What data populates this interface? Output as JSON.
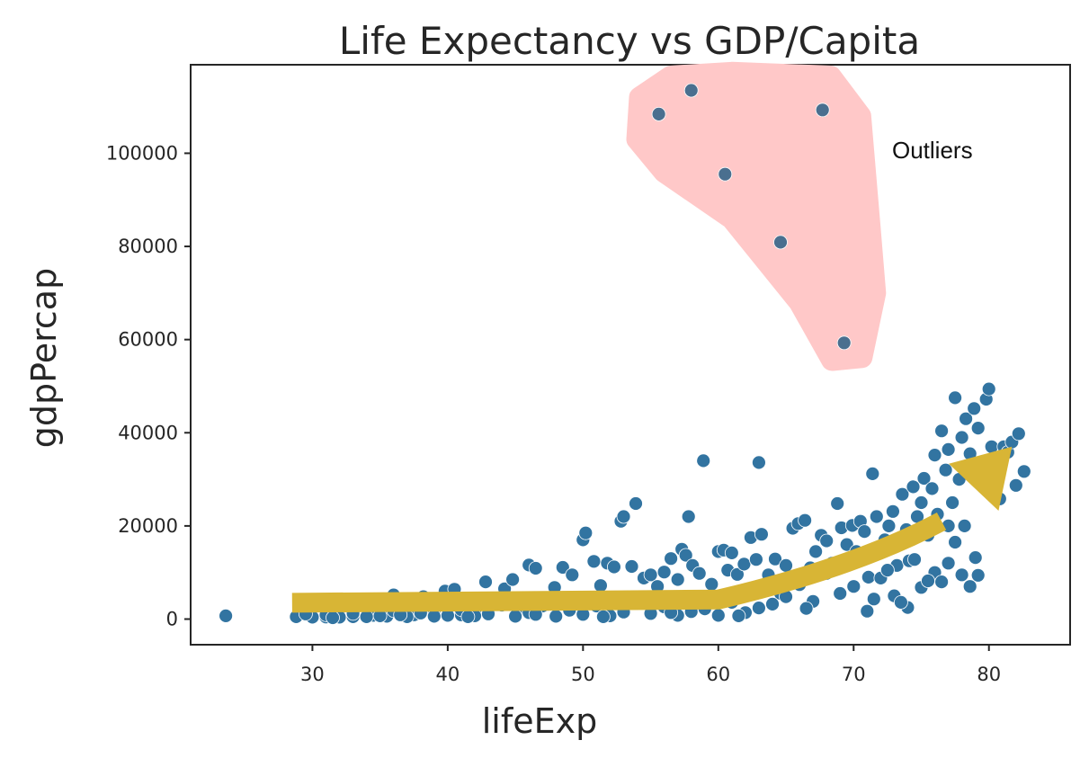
{
  "chart_data": {
    "type": "scatter",
    "title": "Life Expectancy vs GDP/Capita",
    "xlabel": "lifeExp",
    "ylabel": "gdpPercap",
    "xlim": [
      21,
      86
    ],
    "ylim": [
      -5500,
      119000
    ],
    "xticks": [
      30,
      40,
      50,
      60,
      70,
      80
    ],
    "yticks": [
      0,
      20000,
      40000,
      60000,
      80000,
      100000
    ],
    "grid": false,
    "marker_color": "#3274a1",
    "highlight_color": "#ffc8c8",
    "arrow_color": "#d8b535",
    "annotation": "Outliers",
    "outliers": [
      {
        "x": 55.6,
        "y": 108400
      },
      {
        "x": 58.0,
        "y": 113500
      },
      {
        "x": 67.7,
        "y": 109300
      },
      {
        "x": 60.5,
        "y": 95500
      },
      {
        "x": 64.6,
        "y": 80900
      },
      {
        "x": 69.3,
        "y": 59300
      }
    ],
    "points": [
      [
        23.6,
        700
      ],
      [
        28.8,
        500
      ],
      [
        30.0,
        600
      ],
      [
        31.0,
        450
      ],
      [
        32.0,
        700
      ],
      [
        33.0,
        500
      ],
      [
        34.5,
        800
      ],
      [
        35.5,
        600
      ],
      [
        36.0,
        5200
      ],
      [
        37.5,
        900
      ],
      [
        38.2,
        4800
      ],
      [
        39.0,
        1200
      ],
      [
        39.8,
        6000
      ],
      [
        40.5,
        6400
      ],
      [
        41.0,
        900
      ],
      [
        42.0,
        1500
      ],
      [
        42.8,
        8000
      ],
      [
        43.5,
        3800
      ],
      [
        44.2,
        6500
      ],
      [
        44.8,
        8500
      ],
      [
        45.5,
        2200
      ],
      [
        46.0,
        11600
      ],
      [
        46.5,
        10900
      ],
      [
        47.2,
        3000
      ],
      [
        47.9,
        6800
      ],
      [
        48.5,
        11100
      ],
      [
        49.2,
        9500
      ],
      [
        50.0,
        17000
      ],
      [
        50.2,
        18500
      ],
      [
        50.8,
        12400
      ],
      [
        51.3,
        7200
      ],
      [
        51.8,
        12000
      ],
      [
        52.3,
        11200
      ],
      [
        52.8,
        21000
      ],
      [
        53.0,
        22000
      ],
      [
        53.6,
        11300
      ],
      [
        53.9,
        24800
      ],
      [
        54.5,
        8800
      ],
      [
        55.0,
        9500
      ],
      [
        55.5,
        7000
      ],
      [
        56.0,
        10100
      ],
      [
        56.5,
        13000
      ],
      [
        57.0,
        8500
      ],
      [
        57.3,
        15000
      ],
      [
        57.6,
        13700
      ],
      [
        57.8,
        22000
      ],
      [
        58.1,
        11500
      ],
      [
        58.6,
        9800
      ],
      [
        58.9,
        34000
      ],
      [
        59.5,
        7500
      ],
      [
        60.0,
        14500
      ],
      [
        60.4,
        14800
      ],
      [
        60.7,
        10500
      ],
      [
        61.0,
        14200
      ],
      [
        61.4,
        9600
      ],
      [
        61.9,
        11800
      ],
      [
        62.4,
        17500
      ],
      [
        62.8,
        12800
      ],
      [
        63.0,
        33600
      ],
      [
        63.2,
        18200
      ],
      [
        63.7,
        9500
      ],
      [
        64.2,
        12900
      ],
      [
        64.6,
        5500
      ],
      [
        65.0,
        11500
      ],
      [
        65.5,
        19500
      ],
      [
        65.9,
        20500
      ],
      [
        66.4,
        21200
      ],
      [
        66.8,
        11000
      ],
      [
        67.2,
        14500
      ],
      [
        67.6,
        18000
      ],
      [
        68.0,
        16800
      ],
      [
        68.4,
        12000
      ],
      [
        68.8,
        24800
      ],
      [
        69.1,
        19600
      ],
      [
        69.5,
        16000
      ],
      [
        69.9,
        20100
      ],
      [
        70.2,
        14500
      ],
      [
        70.5,
        21000
      ],
      [
        70.8,
        18800
      ],
      [
        71.1,
        9000
      ],
      [
        71.4,
        31200
      ],
      [
        71.7,
        22000
      ],
      [
        72.0,
        14800
      ],
      [
        72.3,
        17000
      ],
      [
        72.6,
        20000
      ],
      [
        72.9,
        23100
      ],
      [
        73.2,
        11500
      ],
      [
        73.4,
        16000
      ],
      [
        73.6,
        26800
      ],
      [
        73.9,
        19200
      ],
      [
        74.1,
        12500
      ],
      [
        74.4,
        28400
      ],
      [
        74.7,
        22000
      ],
      [
        75.0,
        25000
      ],
      [
        75.2,
        30200
      ],
      [
        75.5,
        18000
      ],
      [
        75.8,
        28000
      ],
      [
        76.0,
        35200
      ],
      [
        76.2,
        22500
      ],
      [
        76.5,
        40400
      ],
      [
        76.8,
        32000
      ],
      [
        77.0,
        36400
      ],
      [
        77.3,
        25000
      ],
      [
        77.5,
        47500
      ],
      [
        77.8,
        30000
      ],
      [
        78.0,
        39000
      ],
      [
        78.3,
        43000
      ],
      [
        78.6,
        35500
      ],
      [
        78.9,
        45200
      ],
      [
        79.2,
        41000
      ],
      [
        79.5,
        33800
      ],
      [
        79.8,
        47200
      ],
      [
        80.0,
        49400
      ],
      [
        80.2,
        37000
      ],
      [
        80.5,
        29500
      ],
      [
        80.8,
        25800
      ],
      [
        81.1,
        37000
      ],
      [
        81.4,
        35800
      ],
      [
        81.7,
        38000
      ],
      [
        82.0,
        28700
      ],
      [
        82.2,
        39800
      ],
      [
        82.6,
        31700
      ],
      [
        76.0,
        10000
      ],
      [
        76.5,
        8000
      ],
      [
        77.0,
        12000
      ],
      [
        77.5,
        16500
      ],
      [
        78.0,
        9500
      ],
      [
        78.6,
        7000
      ],
      [
        79.0,
        13200
      ],
      [
        79.2,
        9400
      ],
      [
        78.2,
        20000
      ],
      [
        77.0,
        20000
      ],
      [
        75.0,
        6800
      ],
      [
        74.0,
        2500
      ],
      [
        73.0,
        5000
      ],
      [
        72.0,
        8800
      ],
      [
        71.0,
        1700
      ],
      [
        70.0,
        7000
      ],
      [
        69.0,
        5500
      ],
      [
        68.0,
        9800
      ],
      [
        67.0,
        3800
      ],
      [
        66.0,
        7400
      ],
      [
        65.0,
        4800
      ],
      [
        64.0,
        3200
      ],
      [
        63.0,
        2400
      ],
      [
        62.0,
        1400
      ],
      [
        61.0,
        3600
      ],
      [
        60.0,
        800
      ],
      [
        59.0,
        2200
      ],
      [
        58.0,
        1600
      ],
      [
        57.0,
        800
      ],
      [
        56.0,
        2600
      ],
      [
        55.0,
        1200
      ],
      [
        54.0,
        3600
      ],
      [
        53.0,
        1500
      ],
      [
        52.0,
        700
      ],
      [
        51.0,
        2800
      ],
      [
        50.0,
        1000
      ],
      [
        49.0,
        1900
      ],
      [
        48.0,
        600
      ],
      [
        47.0,
        2800
      ],
      [
        46.0,
        1400
      ],
      [
        45.0,
        600
      ],
      [
        44.0,
        3000
      ],
      [
        43.0,
        1100
      ],
      [
        42.0,
        700
      ],
      [
        41.0,
        2000
      ],
      [
        40.0,
        800
      ],
      [
        39.0,
        600
      ],
      [
        38.0,
        1300
      ],
      [
        37.0,
        500
      ],
      [
        36.0,
        1800
      ],
      [
        35.0,
        700
      ],
      [
        34.0,
        500
      ],
      [
        33.0,
        1200
      ],
      [
        32.0,
        400
      ],
      [
        31.0,
        900
      ],
      [
        30.0,
        400
      ],
      [
        29.5,
        1100
      ],
      [
        31.5,
        300
      ],
      [
        36.5,
        900
      ],
      [
        41.5,
        500
      ],
      [
        46.5,
        1000
      ],
      [
        51.5,
        500
      ],
      [
        56.5,
        1400
      ],
      [
        61.5,
        700
      ],
      [
        66.5,
        2300
      ],
      [
        71.5,
        4300
      ],
      [
        73.5,
        3600
      ],
      [
        75.5,
        8200
      ],
      [
        74.5,
        12800
      ],
      [
        72.5,
        10500
      ]
    ],
    "trend_arrow": [
      [
        28.5,
        3500
      ],
      [
        60,
        4200
      ],
      [
        70,
        11000
      ],
      [
        76.5,
        21000
      ],
      [
        81.7,
        37000
      ]
    ]
  }
}
